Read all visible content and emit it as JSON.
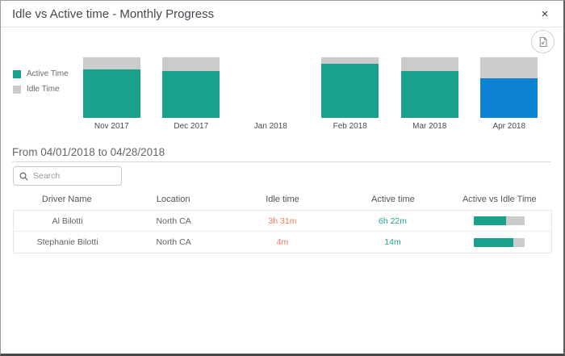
{
  "dialog": {
    "title": "Idle vs Active time - Monthly Progress",
    "close_label": "×"
  },
  "icons": {
    "export_image_icon": "export-image",
    "search_icon": "magnifier",
    "close_icon": "x"
  },
  "colors": {
    "active": "#18a28c",
    "idle": "#cbcbcb",
    "highlight_active": "#0d84d3",
    "idle_text": "#ec7b5c",
    "active_text": "#27a292"
  },
  "chart_data": {
    "type": "bar",
    "stacked": true,
    "percent_stacked": true,
    "categories": [
      "Nov 2017",
      "Dec 2017",
      "Jan 2018",
      "Feb 2018",
      "Mar 2018",
      "Apr 2018"
    ],
    "series": [
      {
        "name": "Active Time",
        "values": [
          80,
          77,
          null,
          90,
          77,
          65
        ],
        "color": "#18a28c"
      },
      {
        "name": "Idle Time",
        "values": [
          20,
          23,
          null,
          10,
          23,
          35
        ],
        "color": "#cbcbcb"
      }
    ],
    "highlight": {
      "category": "Apr 2018",
      "active_color": "#0d84d3"
    },
    "ylim": [
      0,
      100
    ],
    "legend_position": "left",
    "title": "",
    "xlabel": "",
    "ylabel": ""
  },
  "period": {
    "label": "From 04/01/2018 to 04/28/2018"
  },
  "search": {
    "placeholder": "Search",
    "value": ""
  },
  "table": {
    "columns": [
      "Driver Name",
      "Location",
      "Idle time",
      "Active time",
      "Active vs Idle Time"
    ],
    "rows": [
      {
        "driver": "Al Bilotti",
        "location": "North CA",
        "idle": "3h 31m",
        "active": "6h 22m",
        "active_pct": 64
      },
      {
        "driver": "Stephanie Bilotti",
        "location": "North CA",
        "idle": "4m",
        "active": "14m",
        "active_pct": 78
      }
    ]
  }
}
